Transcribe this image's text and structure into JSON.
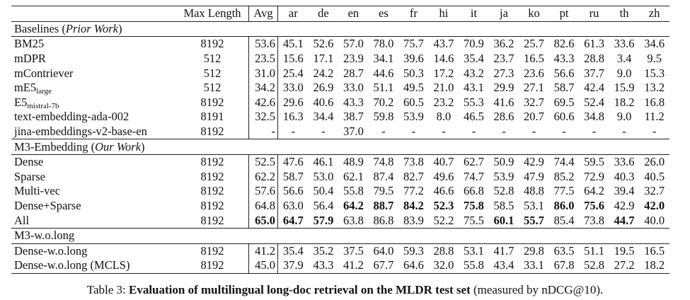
{
  "table": {
    "header": [
      "Max Length",
      "Avg",
      "ar",
      "de",
      "en",
      "es",
      "fr",
      "hi",
      "it",
      "ja",
      "ko",
      "pt",
      "ru",
      "th",
      "zh"
    ],
    "sections": [
      {
        "title": [
          {
            "text": "Baselines ("
          },
          {
            "text": "Prior Work",
            "italic": true
          },
          {
            "text": ")"
          }
        ],
        "rows": [
          {
            "name": "BM25",
            "max_length": "8192",
            "values": [
              "53.6",
              "45.1",
              "52.6",
              "57.0",
              "78.0",
              "75.7",
              "43.7",
              "70.9",
              "36.2",
              "25.7",
              "82.6",
              "61.3",
              "33.6",
              "34.6"
            ]
          },
          {
            "name": "mDPR",
            "max_length": "512",
            "values": [
              "23.5",
              "15.6",
              "17.1",
              "23.9",
              "34.1",
              "39.6",
              "14.6",
              "35.4",
              "23.7",
              "16.5",
              "43.3",
              "28.8",
              "3.4",
              "9.5"
            ]
          },
          {
            "name": "mContriever",
            "max_length": "512",
            "values": [
              "31.0",
              "25.4",
              "24.2",
              "28.7",
              "44.6",
              "50.3",
              "17.2",
              "43.2",
              "27.3",
              "23.6",
              "56.6",
              "37.7",
              "9.0",
              "15.3"
            ]
          },
          {
            "name": "mE5",
            "sub": "large",
            "max_length": "512",
            "values": [
              "34.2",
              "33.0",
              "26.9",
              "33.0",
              "51.1",
              "49.5",
              "21.0",
              "43.1",
              "29.9",
              "27.1",
              "58.7",
              "42.4",
              "15.9",
              "13.2"
            ]
          },
          {
            "name": "E5",
            "sub": "mistral-7b",
            "max_length": "8192",
            "values": [
              "42.6",
              "29.6",
              "40.6",
              "43.3",
              "70.2",
              "60.5",
              "23.2",
              "55.3",
              "41.6",
              "32.7",
              "69.5",
              "52.4",
              "18.2",
              "16.8"
            ]
          },
          {
            "name": "text-embedding-ada-002",
            "max_length": "8191",
            "values": [
              "32.5",
              "16.3",
              "34.4",
              "38.7",
              "59.8",
              "53.9",
              "8.0",
              "46.5",
              "28.6",
              "20.7",
              "60.6",
              "34.8",
              "9.0",
              "11.2"
            ]
          },
          {
            "name": "jina-embeddings-v2-base-en",
            "max_length": "8192",
            "values": [
              "-",
              "-",
              "-",
              "37.0",
              "-",
              "-",
              "-",
              "-",
              "-",
              "-",
              "-",
              "-",
              "-",
              "-"
            ]
          }
        ]
      },
      {
        "title": [
          {
            "text": "M3-Embedding ("
          },
          {
            "text": "Our Work",
            "italic": true
          },
          {
            "text": ")"
          }
        ],
        "rows": [
          {
            "name": "Dense",
            "max_length": "8192",
            "values": [
              "52.5",
              "47.6",
              "46.1",
              "48.9",
              "74.8",
              "73.8",
              "40.7",
              "62.7",
              "50.9",
              "42.9",
              "74.4",
              "59.5",
              "33.6",
              "26.0"
            ]
          },
          {
            "name": "Sparse",
            "max_length": "8192",
            "values": [
              "62.2",
              "58.7",
              "53.0",
              "62.1",
              "87.4",
              "82.7",
              "49.6",
              "74.7",
              "53.9",
              "47.9",
              "85.2",
              "72.9",
              "40.3",
              "40.5"
            ]
          },
          {
            "name": "Multi-vec",
            "max_length": "8192",
            "values": [
              "57.6",
              "56.6",
              "50.4",
              "55.8",
              "79.5",
              "77.2",
              "46.6",
              "66.8",
              "52.8",
              "48.8",
              "77.5",
              "64.2",
              "39.4",
              "32.7"
            ]
          },
          {
            "name": "Dense+Sparse",
            "max_length": "8192",
            "values": [
              "64.8",
              "63.0",
              "56.4",
              "64.2",
              "88.7",
              "84.2",
              "52.3",
              "75.8",
              "58.5",
              "53.1",
              "86.0",
              "75.6",
              "42.9",
              "42.0"
            ],
            "bold": [
              3,
              4,
              5,
              6,
              7,
              10,
              11,
              13
            ]
          },
          {
            "name": "All",
            "max_length": "8192",
            "values": [
              "65.0",
              "64.7",
              "57.9",
              "63.8",
              "86.8",
              "83.9",
              "52.2",
              "75.5",
              "60.1",
              "55.7",
              "85.4",
              "73.8",
              "44.7",
              "40.0"
            ],
            "bold": [
              0,
              1,
              2,
              8,
              9,
              12
            ]
          }
        ]
      },
      {
        "title": [
          {
            "text": "M3-w.o.long"
          }
        ],
        "rows": [
          {
            "name": "Dense-w.o.long",
            "max_length": "8192",
            "values": [
              "41.2",
              "35.4",
              "35.2",
              "37.5",
              "64.0",
              "59.3",
              "28.8",
              "53.1",
              "41.7",
              "29.8",
              "63.5",
              "51.1",
              "19.5",
              "16.5"
            ]
          },
          {
            "name": "Dense-w.o.long (MCLS)",
            "max_length": "8192",
            "values": [
              "45.0",
              "37.9",
              "43.3",
              "41.2",
              "67.7",
              "64.6",
              "32.0",
              "55.8",
              "43.4",
              "33.1",
              "67.8",
              "52.8",
              "27.2",
              "18.2"
            ]
          }
        ]
      }
    ]
  },
  "caption": {
    "label": "Table 3: ",
    "title": "Evaluation of multilingual long-doc retrieval on the MLDR test set",
    "note": " (measured by nDCG@10)."
  }
}
